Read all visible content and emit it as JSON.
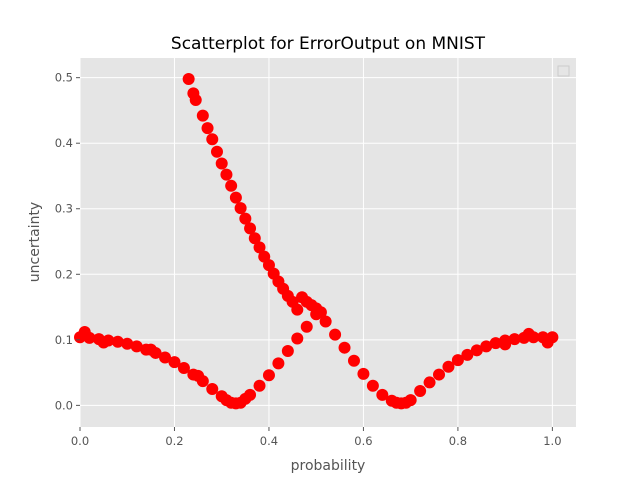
{
  "chart_data": {
    "type": "scatter",
    "title": "Scatterplot for ErrorOutput on MNIST",
    "xlabel": "probability",
    "ylabel": "uncertainty",
    "xlim": [
      0.0,
      1.05
    ],
    "ylim": [
      -0.033,
      0.53
    ],
    "xticks": [
      "0.0",
      "0.2",
      "0.4",
      "0.6",
      "0.8",
      "1.0"
    ],
    "yticks": [
      "0.0",
      "0.1",
      "0.2",
      "0.3",
      "0.4",
      "0.5"
    ],
    "grid": true,
    "legend": "top-right",
    "series": [
      {
        "color": "#ff0000",
        "marker": "circle",
        "x": [
          0.0,
          0.02,
          0.04,
          0.06,
          0.08,
          0.1,
          0.12,
          0.14,
          0.16,
          0.18,
          0.2,
          0.22,
          0.24,
          0.26,
          0.28,
          0.3,
          0.31,
          0.32,
          0.33,
          0.34,
          0.35,
          0.36,
          0.38,
          0.4,
          0.42,
          0.44,
          0.46,
          0.48,
          0.5,
          0.52,
          0.54,
          0.56,
          0.58,
          0.6,
          0.62,
          0.64,
          0.66,
          0.67,
          0.68,
          0.69,
          0.7,
          0.72,
          0.74,
          0.76,
          0.78,
          0.8,
          0.82,
          0.84,
          0.86,
          0.88,
          0.9,
          0.92,
          0.94,
          0.96,
          0.98,
          1.0,
          0.01,
          0.05,
          0.15,
          0.25,
          0.9,
          0.95,
          0.99,
          0.23,
          0.24,
          0.245,
          0.26,
          0.27,
          0.28,
          0.29,
          0.3,
          0.31,
          0.32,
          0.33,
          0.34,
          0.35,
          0.36,
          0.37,
          0.38,
          0.39,
          0.4,
          0.41,
          0.42,
          0.43,
          0.44,
          0.45,
          0.46,
          0.47,
          0.48,
          0.49,
          0.5,
          0.51
        ],
        "y": [
          0.104,
          0.103,
          0.101,
          0.099,
          0.097,
          0.094,
          0.09,
          0.085,
          0.08,
          0.073,
          0.066,
          0.057,
          0.047,
          0.037,
          0.025,
          0.014,
          0.008,
          0.004,
          0.003,
          0.004,
          0.01,
          0.016,
          0.03,
          0.046,
          0.064,
          0.083,
          0.102,
          0.12,
          0.139,
          0.128,
          0.108,
          0.088,
          0.068,
          0.048,
          0.03,
          0.016,
          0.007,
          0.004,
          0.003,
          0.004,
          0.008,
          0.022,
          0.035,
          0.047,
          0.059,
          0.069,
          0.077,
          0.084,
          0.09,
          0.095,
          0.099,
          0.101,
          0.103,
          0.104,
          0.104,
          0.104,
          0.112,
          0.096,
          0.085,
          0.045,
          0.093,
          0.109,
          0.096,
          0.498,
          0.476,
          0.466,
          0.442,
          0.423,
          0.406,
          0.387,
          0.369,
          0.352,
          0.335,
          0.317,
          0.301,
          0.285,
          0.27,
          0.255,
          0.241,
          0.227,
          0.214,
          0.201,
          0.189,
          0.178,
          0.167,
          0.158,
          0.146,
          0.165,
          0.158,
          0.153,
          0.148,
          0.142
        ]
      }
    ]
  }
}
